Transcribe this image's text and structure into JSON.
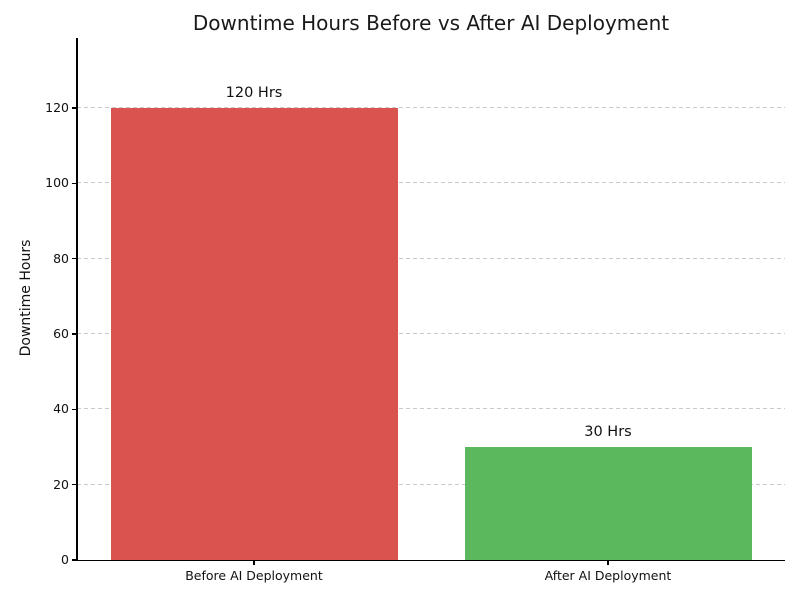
{
  "chart_data": {
    "type": "bar",
    "title": "Downtime Hours Before vs After AI Deployment",
    "xlabel": "",
    "ylabel": "Downtime Hours",
    "categories": [
      "Before AI Deployment",
      "After AI Deployment"
    ],
    "values": [
      120,
      30
    ],
    "bar_labels": [
      "120 Hrs",
      "30 Hrs"
    ],
    "bar_colors": [
      "#d9534f",
      "#5cb85c"
    ],
    "yticks": [
      0,
      20,
      40,
      60,
      80,
      100,
      120
    ],
    "ylim": [
      0,
      138.6
    ],
    "grid": "horizontal-dashed",
    "grid_color": "#c9c9c9",
    "axis_color": "#000000",
    "text_color": "#1a1a1a",
    "legend": "none",
    "background": "#ffffff"
  }
}
